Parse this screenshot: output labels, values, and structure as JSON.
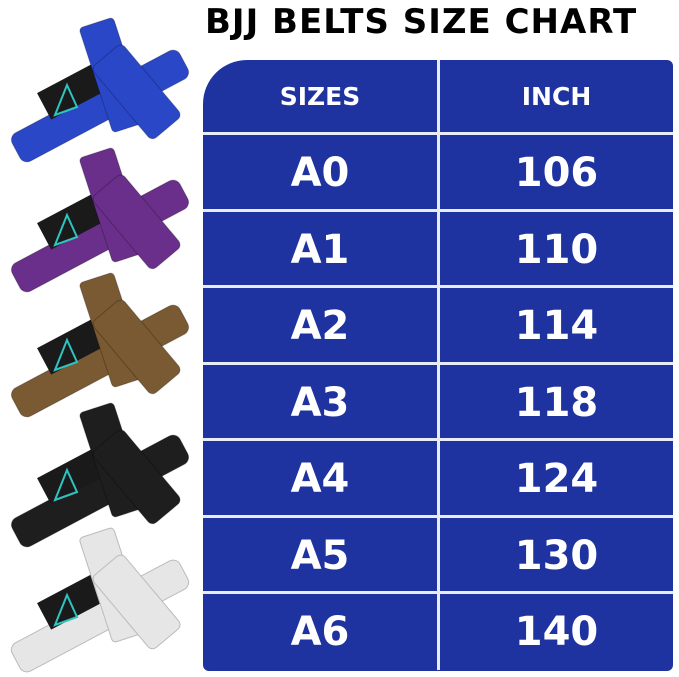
{
  "title": "BJJ BELTS SIZE CHART",
  "table": {
    "headers": [
      "SIZES",
      "INCH"
    ],
    "rows": [
      {
        "size": "A0",
        "inch": "106"
      },
      {
        "size": "A1",
        "inch": "110"
      },
      {
        "size": "A2",
        "inch": "114"
      },
      {
        "size": "A3",
        "inch": "118"
      },
      {
        "size": "A4",
        "inch": "124"
      },
      {
        "size": "A5",
        "inch": "130"
      },
      {
        "size": "A6",
        "inch": "140"
      }
    ]
  },
  "belts": [
    {
      "color_name": "blue",
      "color": "#2a47c8"
    },
    {
      "color_name": "purple",
      "color": "#6a2f8a"
    },
    {
      "color_name": "brown",
      "color": "#7a5a32"
    },
    {
      "color_name": "black",
      "color": "#1e1e1e"
    },
    {
      "color_name": "white",
      "color": "#e6e6e6"
    }
  ],
  "colors": {
    "table_bg": "#1e33a0",
    "divider": "#e8ecf8",
    "logo_accent": "#2ec4c0"
  }
}
